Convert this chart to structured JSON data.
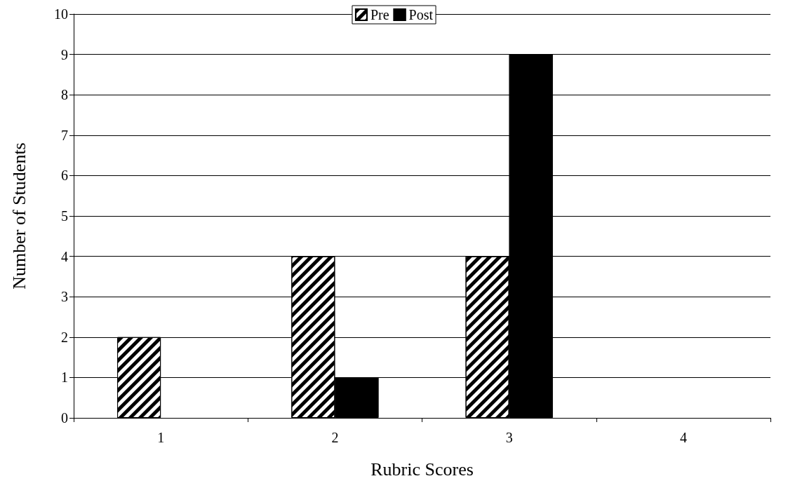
{
  "chart_data": {
    "type": "bar",
    "xlabel": "Rubric Scores",
    "ylabel": "Number of Students",
    "categories": [
      "1",
      "2",
      "3",
      "4"
    ],
    "series": [
      {
        "name": "Pre",
        "color": "#ffffff",
        "values": [
          2,
          4,
          4,
          0
        ]
      },
      {
        "name": "Post",
        "color": "#000000",
        "values": [
          0,
          1,
          9,
          0
        ]
      }
    ],
    "ylim": [
      0,
      10
    ],
    "yticks": [
      0,
      1,
      2,
      3,
      4,
      5,
      6,
      7,
      8,
      9,
      10
    ],
    "grid": "y",
    "legend": "top"
  }
}
